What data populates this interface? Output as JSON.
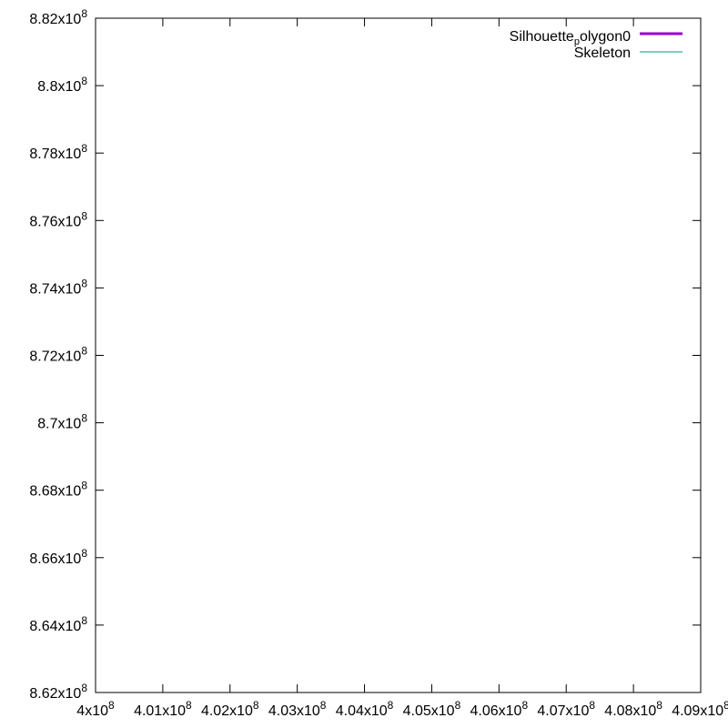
{
  "chart_data": {
    "type": "line",
    "title": "",
    "xlabel": "",
    "ylabel": "",
    "xlim": [
      400000000,
      409000000
    ],
    "ylim": [
      862000000,
      882000000
    ],
    "x_ticks": [
      {
        "value": 400000000,
        "mantissa": "4",
        "exponent": "8"
      },
      {
        "value": 401000000,
        "mantissa": "4.01",
        "exponent": "8"
      },
      {
        "value": 402000000,
        "mantissa": "4.02",
        "exponent": "8"
      },
      {
        "value": 403000000,
        "mantissa": "4.03",
        "exponent": "8"
      },
      {
        "value": 404000000,
        "mantissa": "4.04",
        "exponent": "8"
      },
      {
        "value": 405000000,
        "mantissa": "4.05",
        "exponent": "8"
      },
      {
        "value": 406000000,
        "mantissa": "4.06",
        "exponent": "8"
      },
      {
        "value": 407000000,
        "mantissa": "4.07",
        "exponent": "8"
      },
      {
        "value": 408000000,
        "mantissa": "4.08",
        "exponent": "8"
      },
      {
        "value": 409000000,
        "mantissa": "4.09",
        "exponent": "8"
      }
    ],
    "y_ticks": [
      {
        "value": 862000000,
        "mantissa": "8.62",
        "exponent": "8"
      },
      {
        "value": 864000000,
        "mantissa": "8.64",
        "exponent": "8"
      },
      {
        "value": 866000000,
        "mantissa": "8.66",
        "exponent": "8"
      },
      {
        "value": 868000000,
        "mantissa": "8.68",
        "exponent": "8"
      },
      {
        "value": 870000000,
        "mantissa": "8.7",
        "exponent": "8"
      },
      {
        "value": 872000000,
        "mantissa": "8.72",
        "exponent": "8"
      },
      {
        "value": 874000000,
        "mantissa": "8.74",
        "exponent": "8"
      },
      {
        "value": 876000000,
        "mantissa": "8.76",
        "exponent": "8"
      },
      {
        "value": 878000000,
        "mantissa": "8.78",
        "exponent": "8"
      },
      {
        "value": 880000000,
        "mantissa": "8.8",
        "exponent": "8"
      },
      {
        "value": 882000000,
        "mantissa": "8.82",
        "exponent": "8"
      }
    ],
    "grid": false,
    "legend_position": "top-right",
    "series": [
      {
        "name_main": "Silhouette",
        "name_sub": "p",
        "name_tail": "olygon0",
        "color": "#9400d3",
        "points": []
      },
      {
        "name": "Skeleton",
        "color": "#009e73",
        "points": []
      }
    ]
  }
}
